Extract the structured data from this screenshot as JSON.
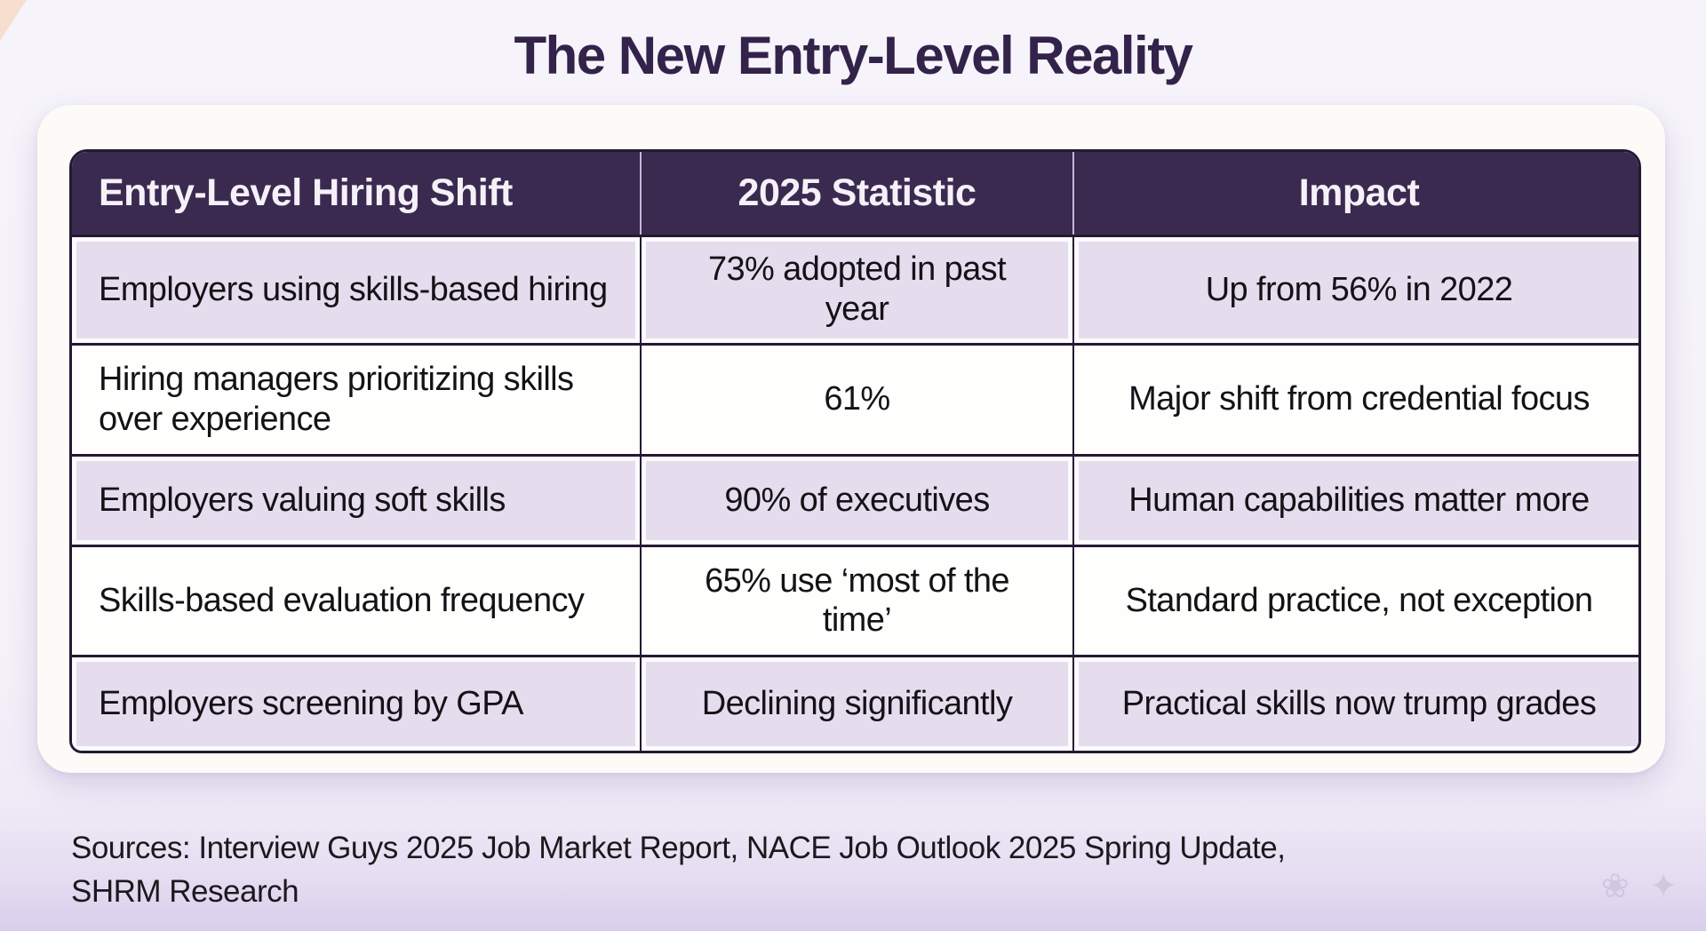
{
  "title": "The New Entry-Level Reality",
  "chart_data": {
    "type": "table",
    "title": "The New Entry-Level Reality",
    "columns": [
      "Entry-Level Hiring Shift",
      "2025 Statistic",
      "Impact"
    ],
    "rows": [
      [
        "Employers using skills-based hiring",
        "73% adopted in past year",
        "Up from 56% in 2022"
      ],
      [
        "Hiring managers prioritizing skills over experience",
        "61%",
        "Major shift from credential focus"
      ],
      [
        "Employers valuing soft skills",
        "90% of executives",
        "Human capabilities matter more"
      ],
      [
        "Skills-based evaluation frequency",
        "65% use ‘most of the time’",
        "Standard practice, not exception"
      ],
      [
        "Employers screening by GPA",
        "Declining significantly",
        "Practical skills now trump grades"
      ]
    ],
    "sources": "Interview Guys 2025 Job Market Report, NACE Job Outlook 2025 Spring Update, SHRM Research",
    "numeric_values": {
      "skills_based_hiring_adoption_pct": 73,
      "skills_based_hiring_2022_pct": 56,
      "managers_prioritizing_skills_pct": 61,
      "executives_valuing_soft_skills_pct": 90,
      "use_most_of_the_time_pct": 65
    },
    "layout_hints": {
      "header_row": true,
      "zebra_rows": "odd rows tinted lavender",
      "column_alignment": [
        "left",
        "center",
        "center"
      ]
    }
  },
  "sources_text": {
    "line1": "Sources: Interview Guys 2025 Job Market Report, NACE Job Outlook 2025 Spring Update,",
    "line2": "SHRM Research"
  },
  "colors": {
    "header_bg": "#3b2a50",
    "row_tint": "#e5ddee",
    "row_plain": "#fefefc",
    "border_dark": "#241933",
    "header_divider": "#c6b6d8",
    "title_color": "#33234a",
    "card_bg": "#fcfbf8",
    "page_bg_top": "#f6f4fa",
    "page_bg_bottom": "#d9cdec"
  },
  "icons": {
    "watermark": "❀ ✦"
  }
}
